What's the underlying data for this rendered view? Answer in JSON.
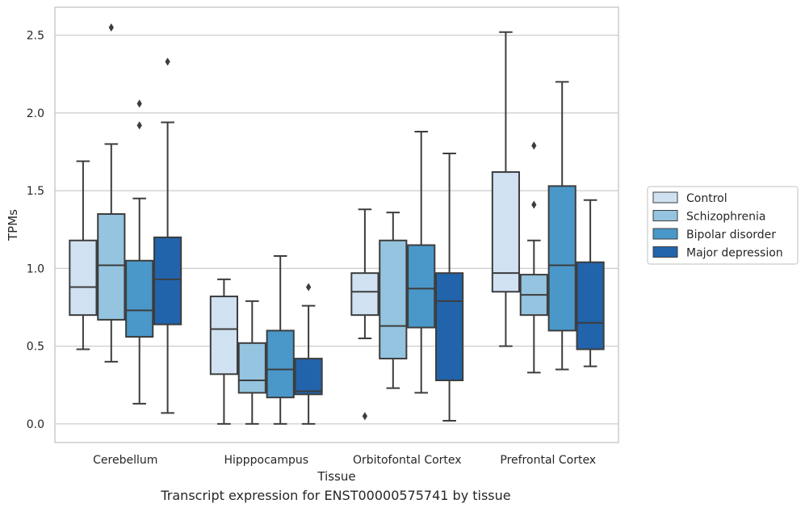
{
  "caption": "Transcript expression for ENST00000575741 by tissue",
  "chart_data": {
    "type": "box",
    "xlabel": "Tissue",
    "ylabel": "TPMs",
    "ylim": [
      -0.12,
      2.68
    ],
    "yticks": [
      0.0,
      0.5,
      1.0,
      1.5,
      2.0,
      2.5
    ],
    "ytick_labels": [
      "0.0",
      "0.5",
      "1.0",
      "1.5",
      "2.0",
      "2.5"
    ],
    "grid": true,
    "legend_position": "right",
    "categories": [
      "Cerebellum",
      "Hipppocampus",
      "Orbitofontal Cortex",
      "Prefrontal Cortex"
    ],
    "series": [
      {
        "name": "Control",
        "color": "#d0e1f2",
        "boxes": [
          {
            "whislo": 0.48,
            "q1": 0.7,
            "med": 0.88,
            "q3": 1.18,
            "whishi": 1.69,
            "fliers": []
          },
          {
            "whislo": 0.0,
            "q1": 0.32,
            "med": 0.61,
            "q3": 0.82,
            "whishi": 0.93,
            "fliers": []
          },
          {
            "whislo": 0.55,
            "q1": 0.7,
            "med": 0.85,
            "q3": 0.97,
            "whishi": 1.38,
            "fliers": [
              0.05
            ]
          },
          {
            "whislo": 0.5,
            "q1": 0.85,
            "med": 0.97,
            "q3": 1.62,
            "whishi": 2.52,
            "fliers": []
          }
        ]
      },
      {
        "name": "Schizophrenia",
        "color": "#94c4df",
        "boxes": [
          {
            "whislo": 0.4,
            "q1": 0.67,
            "med": 1.02,
            "q3": 1.35,
            "whishi": 1.8,
            "fliers": [
              2.55
            ]
          },
          {
            "whislo": 0.0,
            "q1": 0.2,
            "med": 0.28,
            "q3": 0.52,
            "whishi": 0.79,
            "fliers": []
          },
          {
            "whislo": 0.23,
            "q1": 0.42,
            "med": 0.63,
            "q3": 1.18,
            "whishi": 1.36,
            "fliers": []
          },
          {
            "whislo": 0.33,
            "q1": 0.7,
            "med": 0.83,
            "q3": 0.96,
            "whishi": 1.18,
            "fliers": [
              1.41,
              1.79
            ]
          }
        ]
      },
      {
        "name": "Bipolar disorder",
        "color": "#4a98c9",
        "boxes": [
          {
            "whislo": 0.13,
            "q1": 0.56,
            "med": 0.73,
            "q3": 1.05,
            "whishi": 1.45,
            "fliers": [
              1.92,
              2.06
            ]
          },
          {
            "whislo": 0.0,
            "q1": 0.17,
            "med": 0.35,
            "q3": 0.6,
            "whishi": 1.08,
            "fliers": []
          },
          {
            "whislo": 0.2,
            "q1": 0.62,
            "med": 0.87,
            "q3": 1.15,
            "whishi": 1.88,
            "fliers": []
          },
          {
            "whislo": 0.35,
            "q1": 0.6,
            "med": 1.02,
            "q3": 1.53,
            "whishi": 2.2,
            "fliers": []
          }
        ]
      },
      {
        "name": "Major depression",
        "color": "#2164ab",
        "boxes": [
          {
            "whislo": 0.07,
            "q1": 0.64,
            "med": 0.93,
            "q3": 1.2,
            "whishi": 1.94,
            "fliers": [
              2.33
            ]
          },
          {
            "whislo": 0.0,
            "q1": 0.19,
            "med": 0.21,
            "q3": 0.42,
            "whishi": 0.76,
            "fliers": [
              0.88
            ]
          },
          {
            "whislo": 0.02,
            "q1": 0.28,
            "med": 0.79,
            "q3": 0.97,
            "whishi": 1.74,
            "fliers": []
          },
          {
            "whislo": 0.37,
            "q1": 0.48,
            "med": 0.65,
            "q3": 1.04,
            "whishi": 1.44,
            "fliers": []
          }
        ]
      }
    ]
  }
}
